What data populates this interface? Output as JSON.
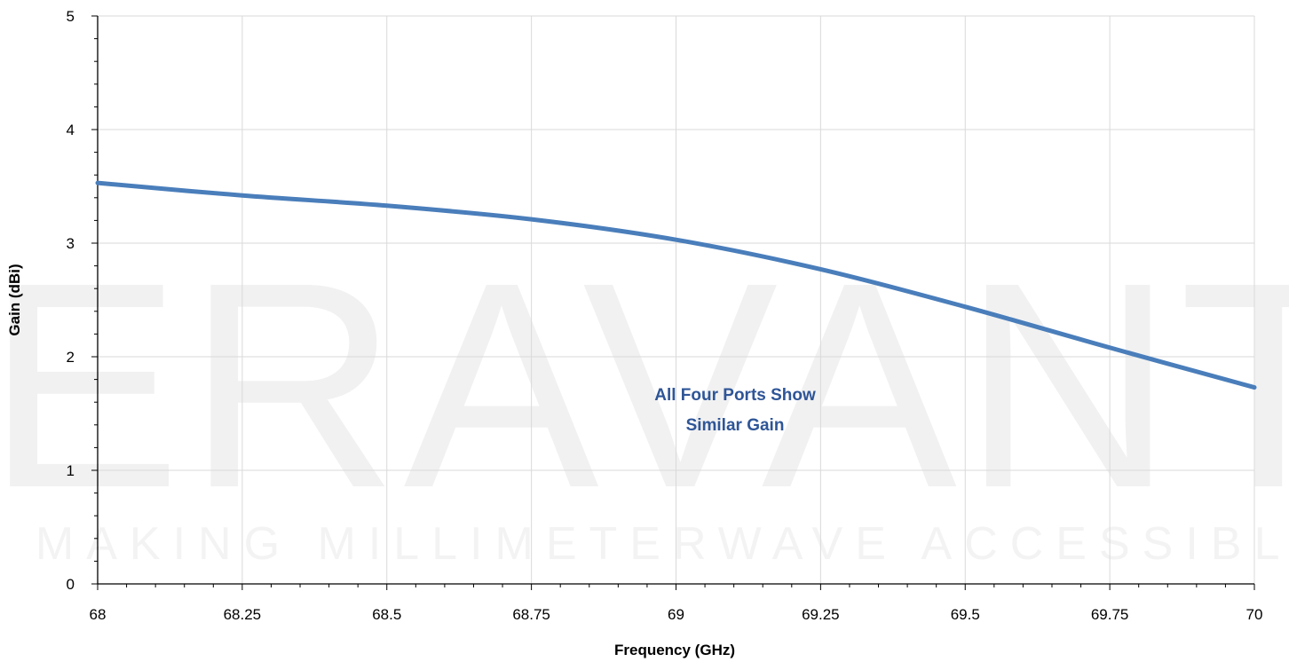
{
  "watermark": {
    "logo_text": "ERAVANT",
    "tagline": "MAKING MILLIMETERWAVE ACCESSIBLE"
  },
  "chart_data": {
    "type": "line",
    "xlabel": "Frequency (GHz)",
    "ylabel": "Gain (dBi)",
    "xlim": [
      68,
      70
    ],
    "ylim": [
      0,
      5
    ],
    "x_ticks": [
      "68",
      "68.25",
      "68.5",
      "68.75",
      "69",
      "69.25",
      "69.5",
      "69.75",
      "70"
    ],
    "y_ticks": [
      "0",
      "1",
      "2",
      "3",
      "4",
      "5"
    ],
    "grid": true,
    "legend": "none",
    "annotation": [
      "All Four Ports Show",
      "Similar Gain"
    ],
    "series": [
      {
        "color": "#4a7ebb",
        "x": [
          68.0,
          68.25,
          68.5,
          68.75,
          69.0,
          69.25,
          69.5,
          69.75,
          70.0
        ],
        "y": [
          3.53,
          3.42,
          3.33,
          3.21,
          3.03,
          2.77,
          2.44,
          2.08,
          1.73
        ]
      }
    ]
  }
}
